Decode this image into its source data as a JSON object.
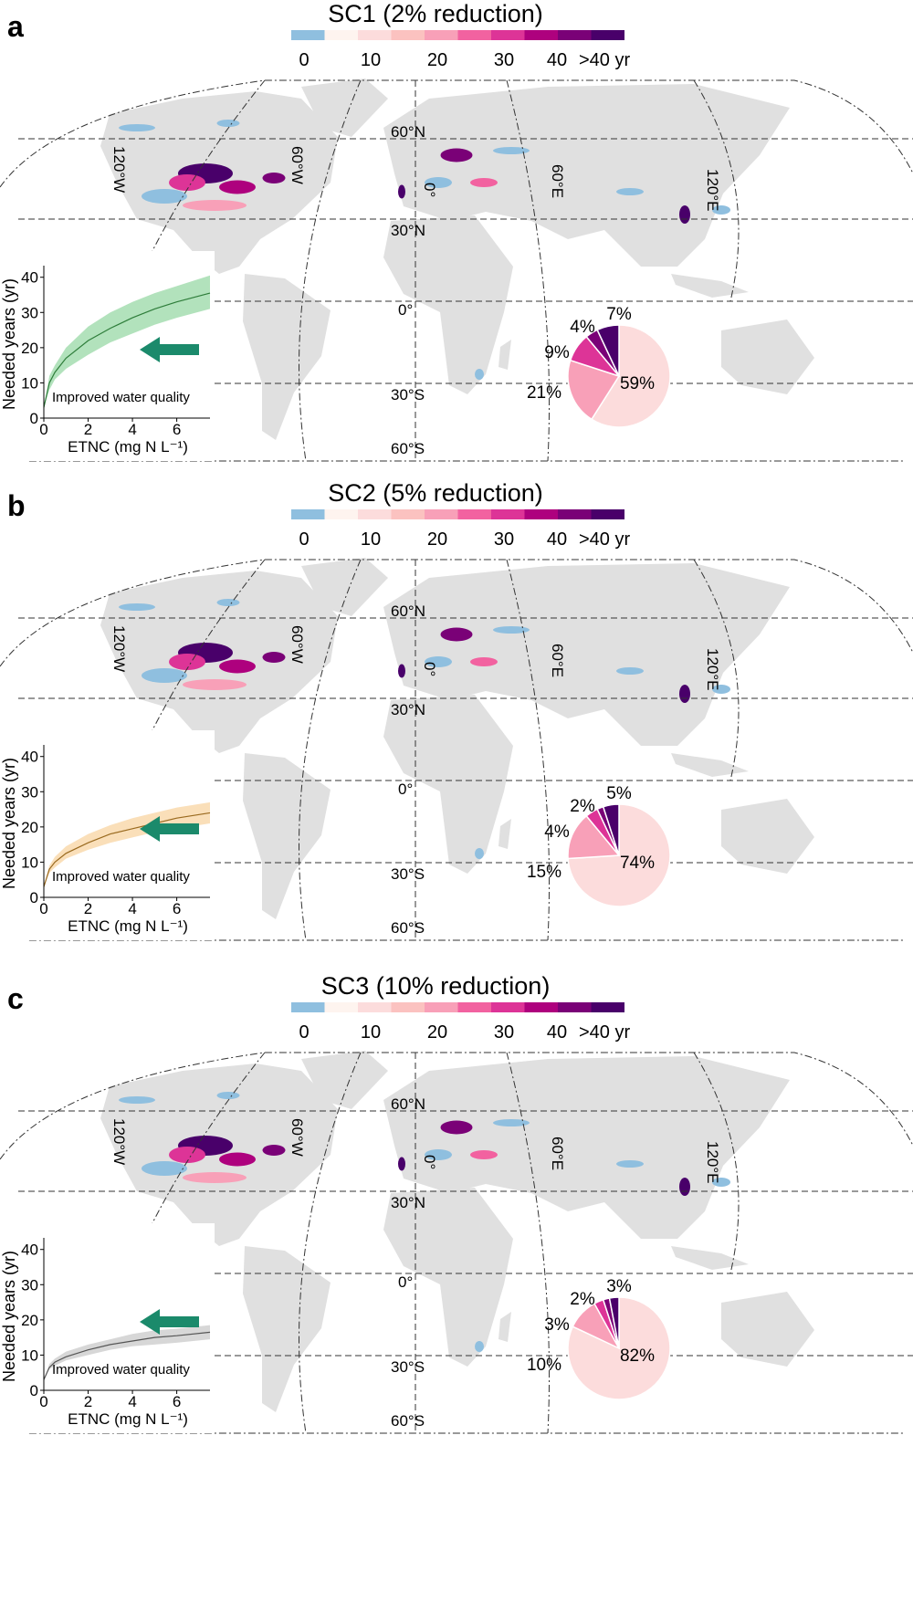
{
  "colorbar": {
    "colors": [
      "#8fbfdf",
      "#fef4ef",
      "#fcdcdc",
      "#fbc2c0",
      "#f8a0b8",
      "#f262a0",
      "#dd3497",
      "#ae017e",
      "#7a0177",
      "#49006a"
    ],
    "tick_labels": [
      "0",
      "10",
      "20",
      "30",
      "40",
      ">40 yr"
    ]
  },
  "map_labels": {
    "parallels": [
      "60°N",
      "30°N",
      "0°",
      "30°S",
      "60°S"
    ],
    "meridians": [
      "120°W",
      "60°W",
      "0°",
      "60°E",
      "120°E"
    ]
  },
  "inset": {
    "ylabel": "Needed years (yr)",
    "xlabel": "ETNC (mg N L⁻¹)",
    "annotation": "Improved water quality",
    "arrow_color": "#1b8a6b",
    "yticks": [
      "0",
      "10",
      "20",
      "30",
      "40"
    ],
    "xticks": [
      "0",
      "2",
      "4",
      "6"
    ]
  },
  "chart_data": [
    {
      "panel": "a",
      "title": "SC1 (2% reduction)",
      "type": "line",
      "line_color": "#2e7d3a",
      "band_color": "#7fcf8f",
      "xlim": [
        0,
        7.5
      ],
      "ylim": [
        0,
        42
      ],
      "x": [
        0,
        0.25,
        0.5,
        1,
        2,
        3,
        4,
        5,
        6,
        7.5
      ],
      "y": [
        3,
        10,
        13,
        17,
        22,
        25.5,
        28.5,
        31,
        33,
        35.5
      ],
      "y_low": [
        3,
        8,
        11,
        14,
        18,
        21.5,
        24,
        26.5,
        28.5,
        31
      ],
      "y_high": [
        3,
        12,
        15,
        20,
        26,
        30,
        33,
        35.5,
        37.5,
        40.5
      ],
      "pie": {
        "values": [
          59,
          21,
          9,
          4,
          7
        ],
        "labels": [
          "59%",
          "21%",
          "9%",
          "4%",
          "7%"
        ],
        "colors": [
          "#fcdcdc",
          "#f8a0b8",
          "#dd3497",
          "#7a0177",
          "#49006a"
        ]
      }
    },
    {
      "panel": "b",
      "title": "SC2 (5% reduction)",
      "type": "line",
      "line_color": "#9a6a1f",
      "band_color": "#f6c98a",
      "xlim": [
        0,
        7.5
      ],
      "ylim": [
        0,
        42
      ],
      "x": [
        0,
        0.25,
        0.5,
        1,
        2,
        3,
        4,
        5,
        6,
        7.5
      ],
      "y": [
        3,
        8,
        10,
        12.5,
        15.5,
        18,
        19.5,
        21,
        22.5,
        24
      ],
      "y_low": [
        3,
        7,
        8.5,
        11,
        13.5,
        15.5,
        17,
        18.5,
        19.5,
        21
      ],
      "y_high": [
        3,
        9,
        11.5,
        14.5,
        18,
        20.5,
        22.5,
        24,
        25.5,
        27
      ],
      "pie": {
        "values": [
          74,
          15,
          4,
          2,
          5
        ],
        "labels": [
          "74%",
          "15%",
          "4%",
          "2%",
          "5%"
        ],
        "colors": [
          "#fcdcdc",
          "#f8a0b8",
          "#dd3497",
          "#7a0177",
          "#49006a"
        ]
      }
    },
    {
      "panel": "c",
      "title": "SC3 (10% reduction)",
      "type": "line",
      "line_color": "#555555",
      "band_color": "#bdbdbd",
      "xlim": [
        0,
        7.5
      ],
      "ylim": [
        0,
        42
      ],
      "x": [
        0,
        0.25,
        0.5,
        1,
        2,
        3,
        4,
        5,
        6,
        7.5
      ],
      "y": [
        3,
        6.5,
        8,
        9.5,
        11.5,
        13,
        14,
        15,
        15.5,
        16.5
      ],
      "y_low": [
        3,
        6,
        7,
        8.5,
        10,
        11.5,
        12.5,
        13,
        13.5,
        14.5
      ],
      "y_high": [
        3,
        7.5,
        9,
        11,
        13,
        14.5,
        16,
        17,
        17.5,
        18.5
      ],
      "pie": {
        "values": [
          82,
          10,
          3,
          2,
          3
        ],
        "labels": [
          "82%",
          "10%",
          "3%",
          "2%",
          "3%"
        ],
        "colors": [
          "#fcdcdc",
          "#f8a0b8",
          "#dd3497",
          "#7a0177",
          "#49006a"
        ]
      }
    }
  ]
}
